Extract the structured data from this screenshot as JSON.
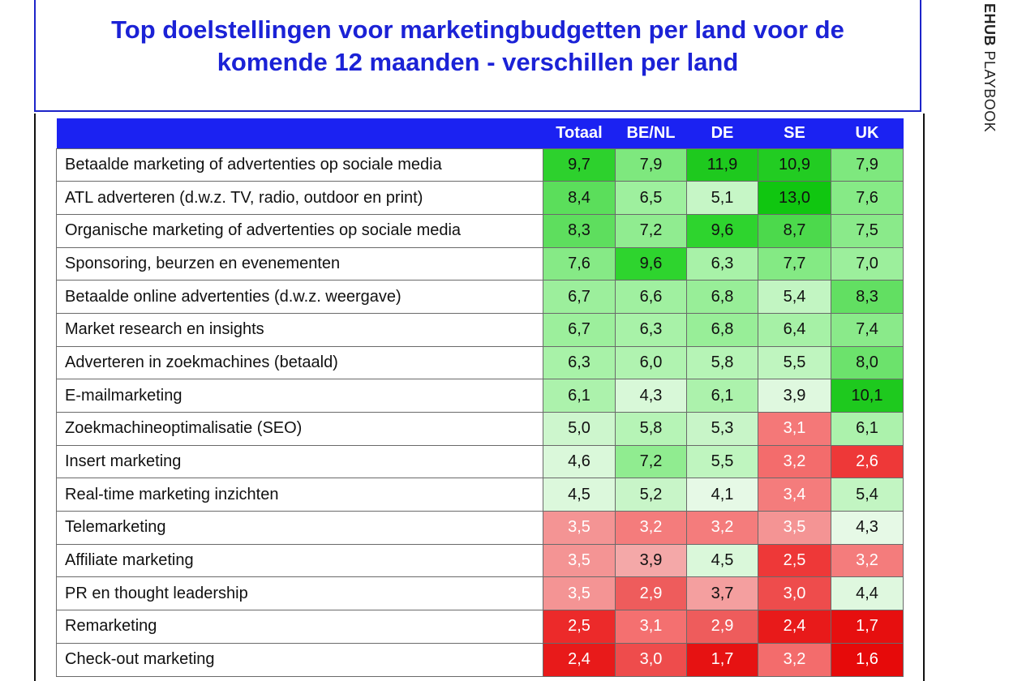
{
  "title": "Top doelstellingen voor marketingbudgetten per land voor de komende 12 maanden - verschillen per land",
  "side_label": {
    "bold": "EHUB",
    "rest": " PLAYBOOK"
  },
  "chart_data": {
    "type": "table",
    "title": "Top doelstellingen voor marketingbudgetten per land voor de komende 12 maanden - verschillen per land",
    "columns": [
      "Totaal",
      "BE/NL",
      "DE",
      "SE",
      "UK"
    ],
    "rows": [
      {
        "label": "Betaalde marketing of advertenties op sociale media",
        "values": [
          "9,7",
          "7,9",
          "11,9",
          "10,9",
          "7,9"
        ]
      },
      {
        "label": "ATL adverteren (d.w.z. TV, radio, outdoor en print)",
        "values": [
          "8,4",
          "6,5",
          "5,1",
          "13,0",
          "7,6"
        ]
      },
      {
        "label": "Organische marketing of advertenties op sociale media",
        "values": [
          "8,3",
          "7,2",
          "9,6",
          "8,7",
          "7,5"
        ]
      },
      {
        "label": "Sponsoring, beurzen en evenementen",
        "values": [
          "7,6",
          "9,6",
          "6,3",
          "7,7",
          "7,0"
        ]
      },
      {
        "label": "Betaalde online advertenties (d.w.z. weergave)",
        "values": [
          "6,7",
          "6,6",
          "6,8",
          "5,4",
          "8,3"
        ]
      },
      {
        "label": "Market research en insights",
        "values": [
          "6,7",
          "6,3",
          "6,8",
          "6,4",
          "7,4"
        ]
      },
      {
        "label": "Adverteren in zoekmachines (betaald)",
        "values": [
          "6,3",
          "6,0",
          "5,8",
          "5,5",
          "8,0"
        ]
      },
      {
        "label": "E-mailmarketing",
        "values": [
          "6,1",
          "4,3",
          "6,1",
          "3,9",
          "10,1"
        ]
      },
      {
        "label": "Zoekmachineoptimalisatie (SEO)",
        "values": [
          "5,0",
          "5,8",
          "5,3",
          "3,1",
          "6,1"
        ]
      },
      {
        "label": "Insert marketing",
        "values": [
          "4,6",
          "7,2",
          "5,5",
          "3,2",
          "2,6"
        ]
      },
      {
        "label": "Real-time marketing inzichten",
        "values": [
          "4,5",
          "5,2",
          "4,1",
          "3,4",
          "5,4"
        ]
      },
      {
        "label": "Telemarketing",
        "values": [
          "3,5",
          "3,2",
          "3,2",
          "3,5",
          "4,3"
        ]
      },
      {
        "label": "Affiliate marketing",
        "values": [
          "3,5",
          "3,9",
          "4,5",
          "2,5",
          "3,2"
        ]
      },
      {
        "label": "PR en thought leadership",
        "values": [
          "3,5",
          "2,9",
          "3,7",
          "3,0",
          "4,4"
        ]
      },
      {
        "label": "Remarketing",
        "values": [
          "2,5",
          "3,1",
          "2,9",
          "2,4",
          "1,7"
        ]
      },
      {
        "label": "Check-out marketing",
        "values": [
          "2,4",
          "3,0",
          "1,7",
          "3,2",
          "1,6"
        ]
      }
    ],
    "cell_colors": [
      [
        "#2dd12d",
        "#7ee87e",
        "#1ec91e",
        "#22cc22",
        "#7ee87e"
      ],
      [
        "#5bde5b",
        "#9ef09e",
        "#c6f6c6",
        "#10c610",
        "#86ea86"
      ],
      [
        "#5ede5e",
        "#90ec90",
        "#2ed42e",
        "#4cd94c",
        "#8aea8a"
      ],
      [
        "#86ea86",
        "#2ed42e",
        "#a8f2a8",
        "#84ea84",
        "#9cef9c"
      ],
      [
        "#9cef9c",
        "#a0f0a0",
        "#98ee98",
        "#c2f5c2",
        "#62df62"
      ],
      [
        "#9cef9c",
        "#a8f2a8",
        "#98ee98",
        "#a6f1a6",
        "#8aea8a"
      ],
      [
        "#a8f2a8",
        "#b0f3b0",
        "#b6f4b6",
        "#bff5bf",
        "#6ce26c"
      ],
      [
        "#acf2ac",
        "#d8f8d8",
        "#acf2ac",
        "#dff8df",
        "#1ec91e"
      ],
      [
        "#cdf6cd",
        "#b6f4b6",
        "#c8f5c8",
        "#f47878",
        "#acf2ac"
      ],
      [
        "#daf8da",
        "#90ec90",
        "#bff5bf",
        "#f36c6c",
        "#ee3838"
      ],
      [
        "#dcf8dc",
        "#c8f5c8",
        "#e6f9e6",
        "#f47c7c",
        "#c2f5c2"
      ],
      [
        "#f49494",
        "#f47c7c",
        "#f47c7c",
        "#f49494",
        "#e6f9e6"
      ],
      [
        "#f49494",
        "#f4a8a8",
        "#daf8da",
        "#ee3838",
        "#f47c7c"
      ],
      [
        "#f49494",
        "#ee5c5c",
        "#f49f9f",
        "#ee4c4c",
        "#dff8df"
      ],
      [
        "#ec2a2a",
        "#f47070",
        "#ee5c5c",
        "#e81a1a",
        "#e60f0f"
      ],
      [
        "#e81a1a",
        "#ee4c4c",
        "#e61212",
        "#f36c6c",
        "#e60a0a"
      ]
    ]
  }
}
